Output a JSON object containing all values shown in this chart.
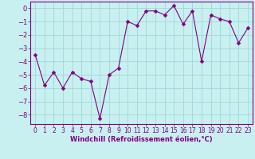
{
  "x": [
    0,
    1,
    2,
    3,
    4,
    5,
    6,
    7,
    8,
    9,
    10,
    11,
    12,
    13,
    14,
    15,
    16,
    17,
    18,
    19,
    20,
    21,
    22,
    23
  ],
  "y": [
    -3.5,
    -5.8,
    -4.8,
    -6.0,
    -4.8,
    -5.3,
    -5.5,
    -8.3,
    -5.0,
    -4.5,
    -1.0,
    -1.3,
    -0.2,
    -0.2,
    -0.5,
    0.2,
    -1.2,
    -0.2,
    -4.0,
    -0.5,
    -0.8,
    -1.0,
    -2.6,
    -1.5
  ],
  "line_color": "#800080",
  "marker_color": "#800080",
  "bg_color": "#c8f0f0",
  "grid_color": "#a0d8d8",
  "xlabel": "Windchill (Refroidissement éolien,°C)",
  "xlim": [
    -0.5,
    23.5
  ],
  "ylim": [
    -8.7,
    0.5
  ],
  "yticks": [
    0,
    -1,
    -2,
    -3,
    -4,
    -5,
    -6,
    -7,
    -8
  ],
  "xticks": [
    0,
    1,
    2,
    3,
    4,
    5,
    6,
    7,
    8,
    9,
    10,
    11,
    12,
    13,
    14,
    15,
    16,
    17,
    18,
    19,
    20,
    21,
    22,
    23
  ],
  "xtick_labels": [
    "0",
    "1",
    "2",
    "3",
    "4",
    "5",
    "6",
    "7",
    "8",
    "9",
    "10",
    "11",
    "12",
    "13",
    "14",
    "15",
    "16",
    "17",
    "18",
    "19",
    "20",
    "21",
    "22",
    "23"
  ],
  "line_width": 0.8,
  "marker_size": 2.5,
  "font_color": "#800080",
  "tick_fontsize": 6,
  "xlabel_fontsize": 6
}
